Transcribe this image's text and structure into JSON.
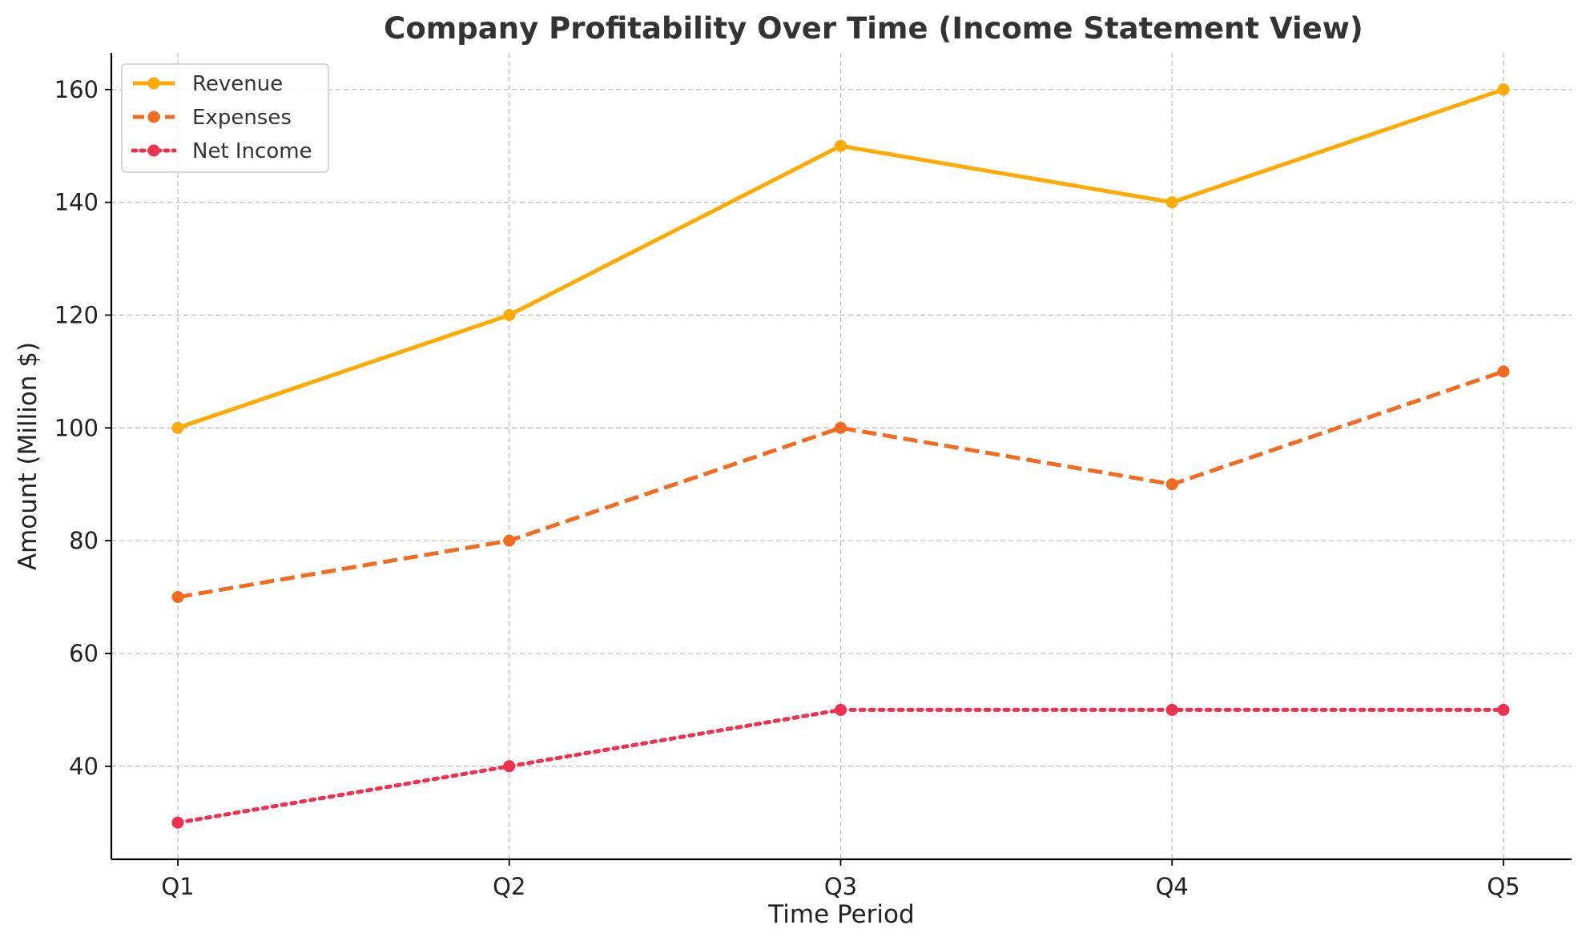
{
  "chart_data": {
    "type": "line",
    "title": "Company Profitability Over Time (Income Statement View)",
    "xlabel": "Time Period",
    "ylabel": "Amount (Million $)",
    "categories": [
      "Q1",
      "Q2",
      "Q3",
      "Q4",
      "Q5"
    ],
    "y_ticks": [
      40,
      60,
      80,
      100,
      120,
      140,
      160
    ],
    "ylim": [
      23.5,
      166.5
    ],
    "grid": true,
    "legend_position": "top-left",
    "series": [
      {
        "name": "Revenue",
        "values": [
          100,
          120,
          150,
          140,
          160
        ],
        "color": "#FFAA00",
        "line_style": "solid",
        "marker": "circle"
      },
      {
        "name": "Expenses",
        "values": [
          70,
          80,
          100,
          90,
          110
        ],
        "color": "#F26B21",
        "line_style": "dashed",
        "marker": "circle"
      },
      {
        "name": "Net Income",
        "values": [
          30,
          40,
          50,
          50,
          50
        ],
        "color": "#F0304F",
        "line_style": "dotted",
        "marker": "circle"
      }
    ]
  }
}
